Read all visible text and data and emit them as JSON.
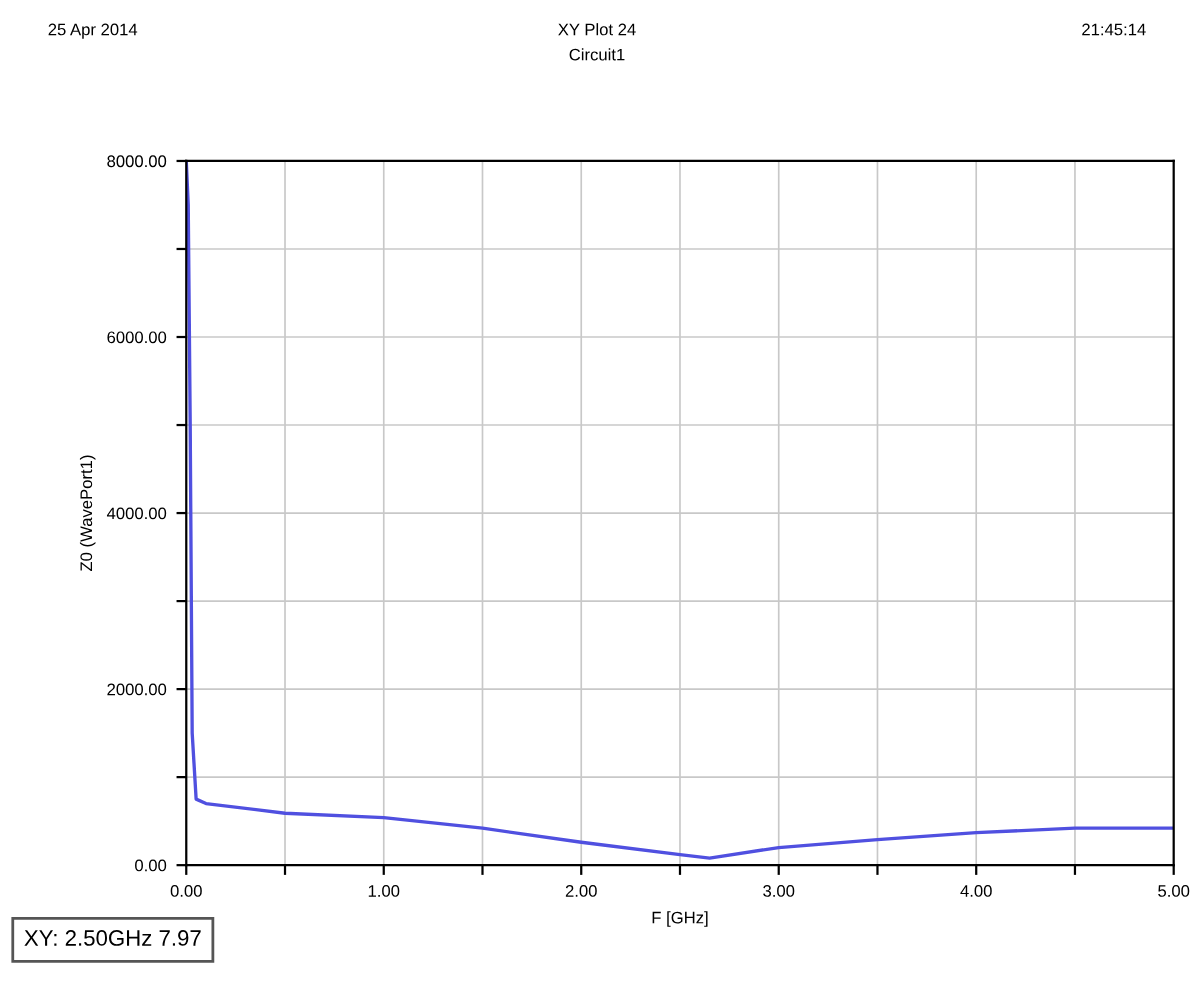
{
  "chart_data": {
    "type": "line",
    "title": "XY Plot 24",
    "subtitle": "Circuit1",
    "xlabel": "F [GHz]",
    "ylabel": "Z0 (WavePort1)",
    "annotations": [
      "25 Apr 2014",
      "21:45:14",
      "XY: 2.50GHz 7.97"
    ],
    "x": [
      0.0,
      0.01,
      0.02,
      0.03,
      0.05,
      0.1,
      0.5,
      1.0,
      1.5,
      2.0,
      2.5,
      2.65,
      3.0,
      3.5,
      4.0,
      4.5,
      5.0
    ],
    "series": [
      {
        "color": "#5050e0",
        "values": [
          8000,
          7500,
          5000,
          1500,
          750,
          700,
          590,
          540,
          420,
          260,
          120,
          80,
          200,
          290,
          370,
          420,
          420
        ]
      }
    ],
    "xlim": [
      0,
      5
    ],
    "ylim": [
      0,
      8000
    ],
    "xticks": [
      {
        "value": 0,
        "label": "0.00"
      },
      {
        "value": 0.5,
        "label": null
      },
      {
        "value": 1,
        "label": "1.00"
      },
      {
        "value": 1.5,
        "label": null
      },
      {
        "value": 2,
        "label": "2.00"
      },
      {
        "value": 2.5,
        "label": null
      },
      {
        "value": 3,
        "label": "3.00"
      },
      {
        "value": 3.5,
        "label": null
      },
      {
        "value": 4,
        "label": "4.00"
      },
      {
        "value": 4.5,
        "label": null
      },
      {
        "value": 5,
        "label": "5.00"
      }
    ],
    "yticks": [
      {
        "value": 0,
        "label": "0.00"
      },
      {
        "value": 1000,
        "label": null
      },
      {
        "value": 2000,
        "label": "2000.00"
      },
      {
        "value": 3000,
        "label": null
      },
      {
        "value": 4000,
        "label": "4000.00"
      },
      {
        "value": 5000,
        "label": null
      },
      {
        "value": 6000,
        "label": "6000.00"
      },
      {
        "value": 7000,
        "label": null
      },
      {
        "value": 8000,
        "label": "8000.00"
      }
    ],
    "grid": true,
    "legend": false,
    "marker": "none",
    "line_style": "solid"
  }
}
